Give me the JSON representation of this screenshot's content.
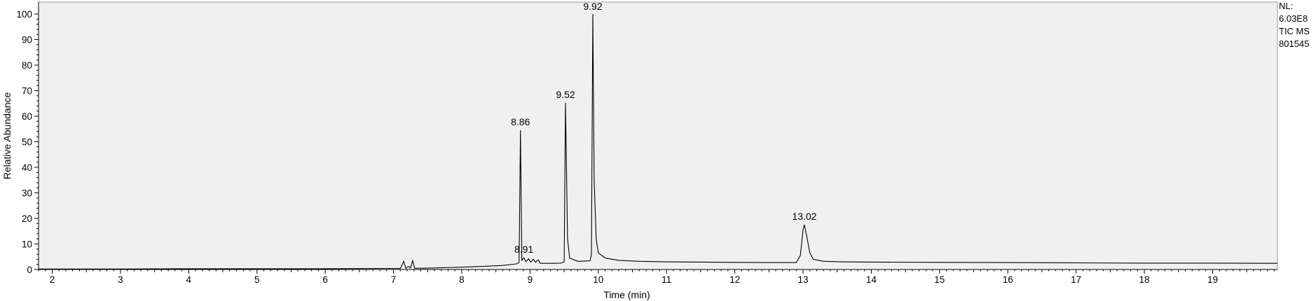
{
  "chart_data": {
    "type": "line",
    "xlabel": "Time (min)",
    "ylabel": "Relative Abundance",
    "xlim": [
      1.8,
      19.95
    ],
    "ylim": [
      0,
      100
    ],
    "x_ticks": [
      2,
      3,
      4,
      5,
      6,
      7,
      8,
      9,
      10,
      11,
      12,
      13,
      14,
      15,
      16,
      17,
      18,
      19
    ],
    "y_ticks": [
      0,
      10,
      20,
      30,
      40,
      50,
      60,
      70,
      80,
      90,
      100
    ],
    "grid": false,
    "info": [
      "NL:",
      "6.03E8",
      "TIC  MS",
      "801545"
    ],
    "peak_labels": [
      {
        "x": 8.86,
        "y": 54.5,
        "text": "8.86"
      },
      {
        "x": 8.91,
        "y": 4.6,
        "text": "8.91"
      },
      {
        "x": 9.52,
        "y": 65.2,
        "text": "9.52"
      },
      {
        "x": 9.92,
        "y": 100,
        "text": "9.92"
      },
      {
        "x": 13.02,
        "y": 17.5,
        "text": "13.02"
      }
    ],
    "series": [
      {
        "points": [
          [
            1.8,
            0.2
          ],
          [
            3.0,
            0.2
          ],
          [
            4.0,
            0.3
          ],
          [
            5.0,
            0.3
          ],
          [
            6.0,
            0.3
          ],
          [
            6.8,
            0.4
          ],
          [
            7.1,
            0.4
          ],
          [
            7.15,
            3.2
          ],
          [
            7.18,
            0.5
          ],
          [
            7.22,
            1.2
          ],
          [
            7.25,
            0.6
          ],
          [
            7.28,
            3.5
          ],
          [
            7.31,
            0.5
          ],
          [
            7.45,
            0.5
          ],
          [
            7.6,
            0.6
          ],
          [
            8.0,
            0.9
          ],
          [
            8.3,
            1.2
          ],
          [
            8.6,
            1.6
          ],
          [
            8.8,
            2.2
          ],
          [
            8.84,
            2.8
          ],
          [
            8.86,
            54.5
          ],
          [
            8.88,
            3.6
          ],
          [
            8.91,
            4.6
          ],
          [
            8.94,
            3.1
          ],
          [
            8.98,
            4.2
          ],
          [
            9.01,
            2.9
          ],
          [
            9.05,
            4.0
          ],
          [
            9.08,
            2.8
          ],
          [
            9.12,
            3.8
          ],
          [
            9.15,
            2.4
          ],
          [
            9.3,
            2.4
          ],
          [
            9.45,
            2.5
          ],
          [
            9.5,
            3.0
          ],
          [
            9.52,
            65.2
          ],
          [
            9.55,
            12.0
          ],
          [
            9.58,
            4.5
          ],
          [
            9.7,
            3.2
          ],
          [
            9.88,
            3.4
          ],
          [
            9.9,
            6.0
          ],
          [
            9.92,
            100
          ],
          [
            9.94,
            35.0
          ],
          [
            9.97,
            12.0
          ],
          [
            10.0,
            6.5
          ],
          [
            10.1,
            4.5
          ],
          [
            10.3,
            3.6
          ],
          [
            10.6,
            3.2
          ],
          [
            11.0,
            3.0
          ],
          [
            11.5,
            2.9
          ],
          [
            12.0,
            2.8
          ],
          [
            12.5,
            2.7
          ],
          [
            12.9,
            2.7
          ],
          [
            12.96,
            5.5
          ],
          [
            13.0,
            15.5
          ],
          [
            13.02,
            17.5
          ],
          [
            13.05,
            13.5
          ],
          [
            13.1,
            6.5
          ],
          [
            13.15,
            4.0
          ],
          [
            13.3,
            3.2
          ],
          [
            13.6,
            3.0
          ],
          [
            14.0,
            2.9
          ],
          [
            15.0,
            2.8
          ],
          [
            16.0,
            2.7
          ],
          [
            17.0,
            2.6
          ],
          [
            18.0,
            2.5
          ],
          [
            19.0,
            2.5
          ],
          [
            19.95,
            2.4
          ]
        ]
      }
    ]
  }
}
